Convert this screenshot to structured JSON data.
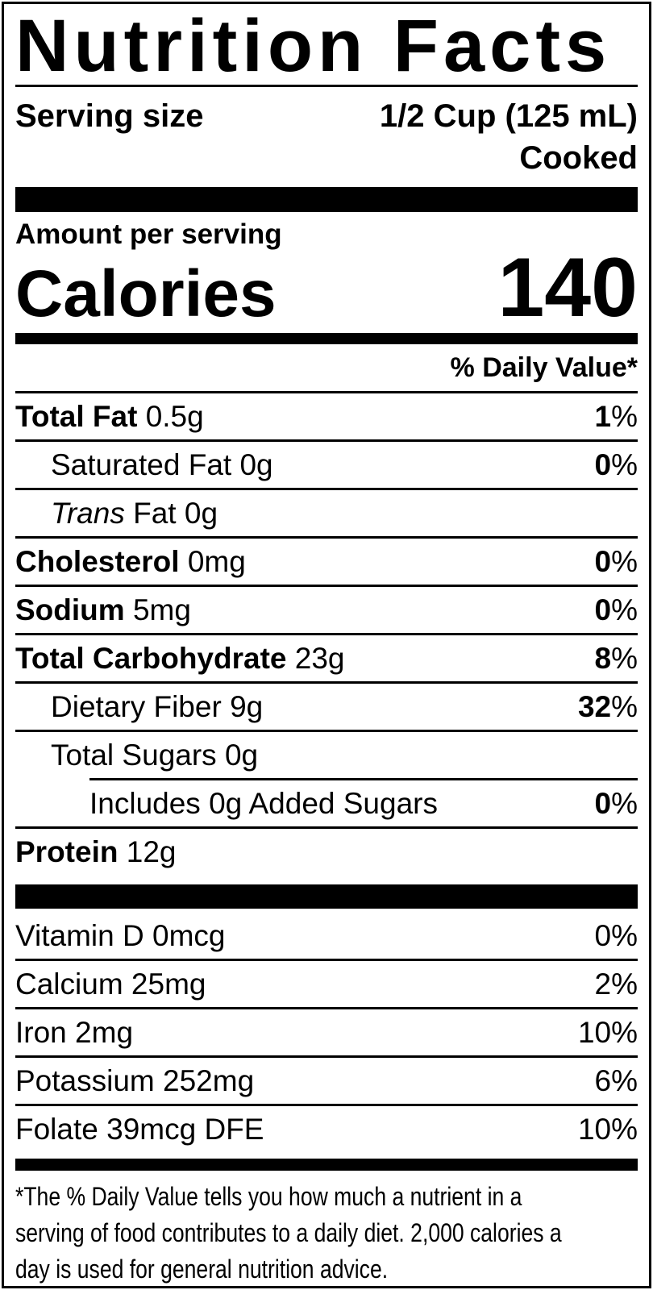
{
  "label": {
    "title": "Nutrition Facts",
    "serving": {
      "label": "Serving size",
      "value": "1/2 Cup (125 mL)",
      "note": "Cooked"
    },
    "calories": {
      "amount_label": "Amount per serving",
      "label": "Calories",
      "value": "140"
    },
    "daily_value_header": "% Daily Value*",
    "nutrients": [
      {
        "name": "Total Fat",
        "amount": "0.5g",
        "dv": "1",
        "pct": "%"
      },
      {
        "name": "Saturated Fat",
        "amount": "0g",
        "dv": "0",
        "pct": "%"
      },
      {
        "name_italic": "Trans",
        "name": "Fat",
        "amount": "0g",
        "dv": "",
        "pct": ""
      },
      {
        "name": "Cholesterol",
        "amount": "0mg",
        "dv": "0",
        "pct": "%"
      },
      {
        "name": "Sodium",
        "amount": "5mg",
        "dv": "0",
        "pct": "%"
      },
      {
        "name": "Total Carbohydrate",
        "amount": "23g",
        "dv": "8",
        "pct": "%"
      },
      {
        "name": "Dietary Fiber",
        "amount": "9g",
        "dv": "32",
        "pct": "%"
      },
      {
        "name": "Total Sugars",
        "amount": "0g",
        "dv": "",
        "pct": ""
      },
      {
        "name": "Includes 0g Added Sugars",
        "amount": "",
        "dv": "0",
        "pct": "%"
      },
      {
        "name": "Protein",
        "amount": "12g",
        "dv": "",
        "pct": ""
      }
    ],
    "micronutrients": [
      {
        "name": "Vitamin D",
        "amount": "0mcg",
        "dv": "0%"
      },
      {
        "name": "Calcium",
        "amount": "25mg",
        "dv": "2%"
      },
      {
        "name": "Iron",
        "amount": "2mg",
        "dv": "10%"
      },
      {
        "name": "Potassium",
        "amount": "252mg",
        "dv": "6%"
      },
      {
        "name": "Folate",
        "amount": "39mcg DFE",
        "dv": "10%"
      }
    ],
    "footnote_lines": [
      "*The % Daily Value tells you how much a nutrient in a",
      "serving of food contributes to a daily diet. 2,000 calories a",
      "day is used for general nutrition advice."
    ]
  }
}
